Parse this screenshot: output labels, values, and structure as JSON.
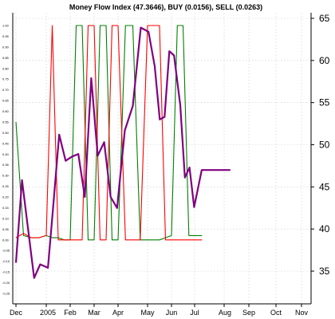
{
  "chart_data": {
    "type": "line",
    "title": "Money Flow Index (47.3646), BUY (0.0156), SELL (0.0263)",
    "x_labels": [
      "Dec",
      "2005",
      "Feb",
      "Mar",
      "Apr",
      "May",
      "Jun",
      "Jul",
      "Aug",
      "Sep",
      "Oct",
      "Nov"
    ],
    "left_axis": {
      "ylim": [
        -0.25,
        1.05
      ],
      "ticks": [
        "-0.25",
        "-0.20",
        "-0.15",
        "-0.10",
        "-0.05",
        "0.00",
        "0.05",
        "0.10",
        "0.15",
        "0.20",
        "0.25",
        "0.30",
        "0.35",
        "0.40",
        "0.45",
        "0.50",
        "0.55",
        "0.60",
        "0.65",
        "0.70",
        "0.75",
        "0.80",
        "0.85",
        "0.90",
        "0.95",
        "1.00"
      ]
    },
    "right_axis": {
      "ylim": [
        31.6,
        66.0
      ],
      "ticks": [
        "35",
        "40",
        "45",
        "50",
        "55",
        "60",
        "65"
      ]
    },
    "grid": true,
    "series": [
      {
        "name": "Money Flow Index",
        "axis": "right",
        "color": "#800080",
        "x": [
          0.0,
          0.2,
          0.4,
          0.6,
          0.8,
          1.07,
          1.27,
          1.54,
          1.81,
          2.08,
          2.34,
          2.61,
          2.88,
          3.15,
          3.42,
          3.69,
          3.96,
          4.23,
          4.5,
          4.77,
          5.04,
          5.3,
          5.51,
          5.71,
          5.91,
          6.11,
          6.38,
          6.58,
          6.78,
          6.98,
          7.24,
          7.45,
          7.65,
          7.85,
          8.05,
          8.25
        ],
        "values": [
          36.0,
          45.8,
          40.0,
          34.2,
          35.8,
          35.4,
          42.0,
          51.2,
          48.1,
          48.6,
          48.9,
          43.8,
          57.9,
          48.7,
          50.3,
          43.8,
          42.5,
          51.7,
          54.6,
          63.9,
          63.4,
          59.3,
          53.0,
          53.3,
          61.1,
          60.6,
          54.7,
          46.1,
          47.3,
          42.6,
          47.0,
          47.0,
          47.0,
          47.0,
          47.0,
          47.0
        ]
      },
      {
        "name": "BUY",
        "axis": "left",
        "color": "#008000",
        "x": [
          0.0,
          0.25,
          0.5,
          0.75,
          1.0,
          1.25,
          1.5,
          1.75,
          2.0,
          2.25,
          2.5,
          2.75,
          3.0,
          3.25,
          3.5,
          3.75,
          4.0,
          4.25,
          4.5,
          4.75,
          5.0,
          5.25,
          5.5,
          5.75,
          6.0,
          6.25,
          6.5,
          6.75,
          7.0,
          7.25
        ],
        "values": [
          0.55,
          0.02,
          0.01,
          0.01,
          0.02,
          0.01,
          0.01,
          0.0,
          0.0,
          1.0,
          1.0,
          0.0,
          0.0,
          1.0,
          1.0,
          0.0,
          0.0,
          1.0,
          1.0,
          0.0,
          0.0,
          0.0,
          0.0,
          0.01,
          0.02,
          1.0,
          1.0,
          0.02,
          0.02,
          0.02
        ]
      },
      {
        "name": "SELL",
        "axis": "left",
        "color": "#ff0000",
        "x": [
          0.0,
          0.25,
          0.5,
          0.75,
          1.0,
          1.25,
          1.5,
          1.75,
          2.0,
          2.25,
          2.5,
          2.75,
          3.0,
          3.25,
          3.5,
          3.75,
          4.0,
          4.25,
          4.5,
          4.75,
          5.0,
          5.25,
          5.5,
          5.75,
          6.0,
          6.25,
          6.5,
          6.75,
          7.0,
          7.25
        ],
        "values": [
          0.01,
          0.03,
          0.01,
          0.01,
          0.02,
          1.0,
          0.0,
          0.0,
          0.0,
          0.0,
          0.0,
          1.0,
          1.0,
          0.0,
          0.0,
          1.0,
          1.0,
          0.0,
          0.0,
          0.0,
          1.0,
          1.0,
          1.0,
          0.0,
          0.0,
          0.0,
          0.0,
          0.0,
          0.0,
          0.0
        ]
      }
    ]
  }
}
